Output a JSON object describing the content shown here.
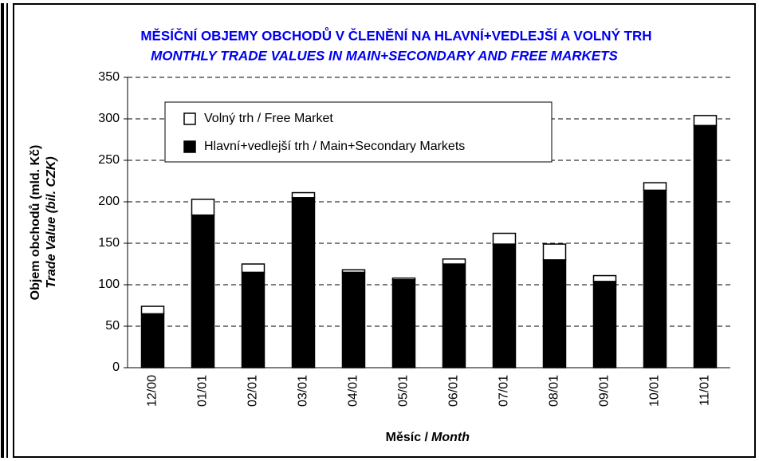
{
  "chart_data": {
    "type": "stacked_bar",
    "title": [
      "MĚSÍČNÍ OBJEMY OBCHODŮ V ČLENĚNÍ NA HLAVNÍ+VEDLEJŠÍ A VOLNÝ TRH",
      "MONTHLY TRADE VALUES IN MAIN+SECONDARY AND FREE MARKETS"
    ],
    "y_label": [
      "Objem obchodů (mld. Kč)",
      "Trade Value (bil. CZK)"
    ],
    "x_label": [
      "Měsíc /",
      "Month"
    ],
    "categories": [
      "12/00",
      "01/01",
      "02/01",
      "03/01",
      "04/01",
      "05/01",
      "06/01",
      "07/01",
      "08/01",
      "09/01",
      "10/01",
      "11/01"
    ],
    "series": [
      {
        "name": "Hlavní+vedlejší trh / Main+Secondary Markets",
        "color": "#000000",
        "values": [
          65,
          184,
          115,
          205,
          115,
          106,
          125,
          149,
          130,
          104,
          214,
          292
        ]
      },
      {
        "name": "Volný trh / Free Market",
        "color": "#ffffff",
        "values": [
          9,
          19,
          10,
          6,
          3,
          2,
          6,
          13,
          19,
          7,
          9,
          12
        ]
      }
    ],
    "ylim": [
      0,
      350
    ],
    "yticks": [
      0,
      50,
      100,
      150,
      200,
      250,
      300,
      350
    ],
    "grid": true
  }
}
